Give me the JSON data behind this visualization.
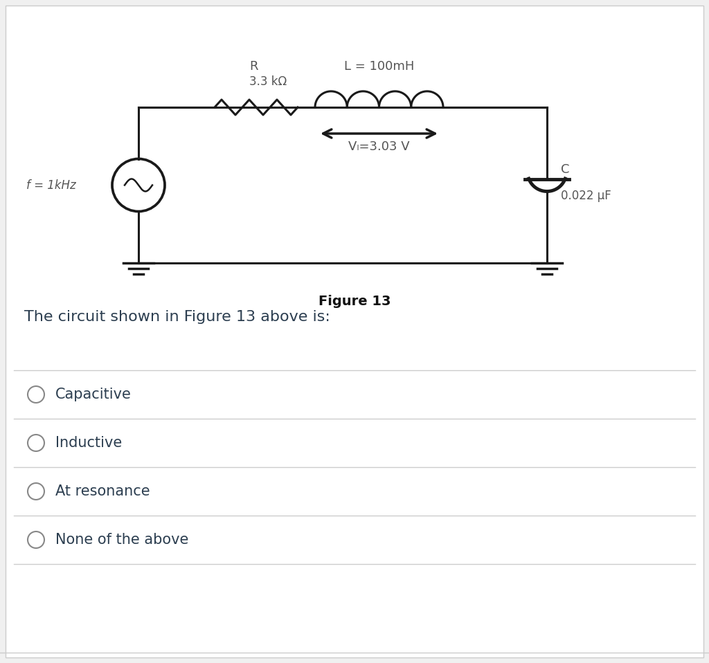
{
  "bg_color": "#f0f0f0",
  "content_bg": "#ffffff",
  "figure_label": "Figure 13",
  "question_text": "The circuit shown in Figure 13 above is:",
  "options": [
    "Capacitive",
    "Inductive",
    "At resonance",
    "None of the above"
  ],
  "circuit": {
    "R_label": "R",
    "R_value": "3.3 kΩ",
    "L_label": "L = 100mH",
    "VL_label": "Vₗ=3.03 V",
    "C_label": "C",
    "C_value": "0.022 μF",
    "freq_label": "f = 1kHz"
  },
  "line_color": "#1a1a1a",
  "text_color": "#2c3e50",
  "option_text_color": "#2c3e50",
  "divider_color": "#cccccc",
  "circle_color": "#2c3e50",
  "figure_label_fontsize": 14,
  "question_fontsize": 16,
  "option_fontsize": 15,
  "circuit_text_color": "#555555"
}
